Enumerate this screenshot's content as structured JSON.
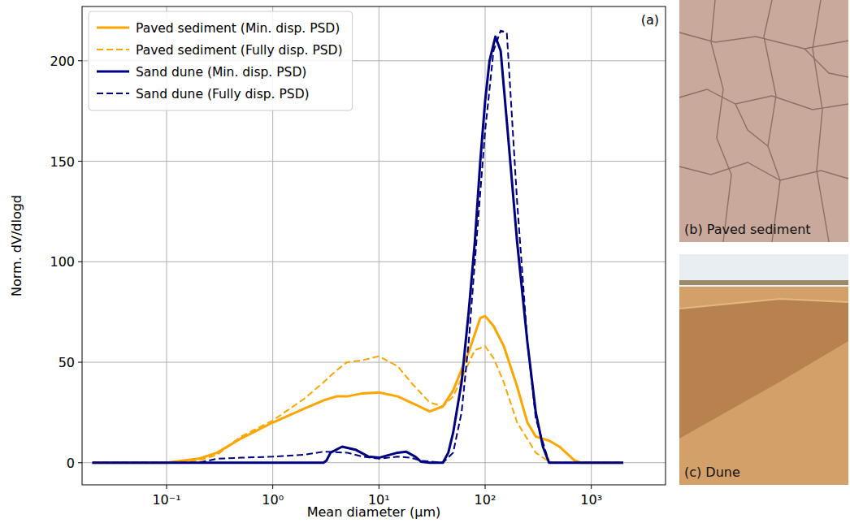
{
  "chart_data": {
    "type": "line",
    "panel_label": "(a)",
    "x_label": "Mean diameter (µm)",
    "y_label": "Norm. dV/dlogd",
    "log": "x",
    "grid": true,
    "legend": "upper left",
    "xlim": [
      0.016,
      5000
    ],
    "ylim": [
      -11,
      227
    ],
    "xticks": [
      {
        "value": 0.1,
        "label": "10⁻¹"
      },
      {
        "value": 1,
        "label": "10⁰"
      },
      {
        "value": 10,
        "label": "10¹"
      },
      {
        "value": 100,
        "label": "10²"
      },
      {
        "value": 1000,
        "label": "10³"
      }
    ],
    "yticks": [
      0,
      50,
      100,
      150,
      200
    ],
    "series": [
      {
        "name": "Paved sediment (Min. disp. PSD)",
        "color": "#ffa500",
        "line_style": "solid",
        "x": [
          0.02,
          0.1,
          0.2,
          0.3,
          0.5,
          1,
          2,
          3,
          4,
          5,
          7,
          10,
          15,
          20,
          30,
          40,
          50,
          70,
          90,
          100,
          120,
          150,
          200,
          250,
          300,
          400,
          500,
          700,
          800,
          2000
        ],
        "values": [
          0,
          0,
          2,
          5,
          12,
          20,
          27,
          31,
          33,
          33,
          34.5,
          35,
          33,
          30,
          25.5,
          28,
          36,
          55,
          72,
          73,
          68,
          58,
          38,
          20,
          13,
          11,
          8,
          1,
          0,
          0
        ]
      },
      {
        "name": "Paved sediment (Fully disp. PSD)",
        "color": "#ffa500",
        "line_style": "dashed",
        "x": [
          0.02,
          0.1,
          0.2,
          0.3,
          0.5,
          1,
          2,
          3,
          4,
          5,
          7,
          10,
          15,
          20,
          30,
          40,
          50,
          60,
          80,
          100,
          120,
          150,
          200,
          300,
          400,
          500,
          2000
        ],
        "values": [
          0,
          0,
          1,
          4,
          13,
          21,
          32,
          40,
          46,
          50,
          51,
          53,
          48,
          40,
          30,
          28,
          33,
          42,
          56,
          58,
          52,
          40,
          20,
          5,
          0.5,
          0,
          0
        ]
      },
      {
        "name": "Sand dune (Min. disp. PSD)",
        "color": "#000080",
        "line_style": "solid",
        "x": [
          0.02,
          3,
          3.2,
          3.5,
          4.5,
          6,
          8,
          10,
          15,
          18,
          22,
          25,
          30,
          40,
          45,
          50,
          60,
          70,
          80,
          90,
          100,
          110,
          125,
          140,
          160,
          200,
          250,
          300,
          350,
          400,
          2000
        ],
        "values": [
          0,
          0,
          1,
          5,
          8,
          6.5,
          3,
          2.5,
          5,
          5.5,
          3,
          0.5,
          0,
          0,
          5,
          15,
          40,
          75,
          110,
          150,
          180,
          200,
          212,
          205,
          170,
          110,
          60,
          25,
          8,
          0,
          0
        ]
      },
      {
        "name": "Sand dune (Fully disp. PSD)",
        "color": "#000080",
        "line_style": "dashed",
        "x": [
          0.02,
          0.2,
          0.3,
          0.5,
          1,
          2,
          3,
          5,
          7,
          10,
          15,
          20,
          25,
          40,
          50,
          60,
          70,
          80,
          100,
          120,
          140,
          160,
          200,
          250,
          300,
          400,
          2000
        ],
        "values": [
          0,
          0,
          2,
          2.5,
          3,
          4,
          5.5,
          5,
          3,
          2,
          3,
          2.5,
          1,
          0,
          5,
          25,
          60,
          100,
          165,
          205,
          215,
          214,
          130,
          60,
          22,
          0,
          0
        ]
      }
    ]
  },
  "photos": [
    {
      "label": "(b) Paved sediment"
    },
    {
      "label": "(c) Dune"
    }
  ]
}
